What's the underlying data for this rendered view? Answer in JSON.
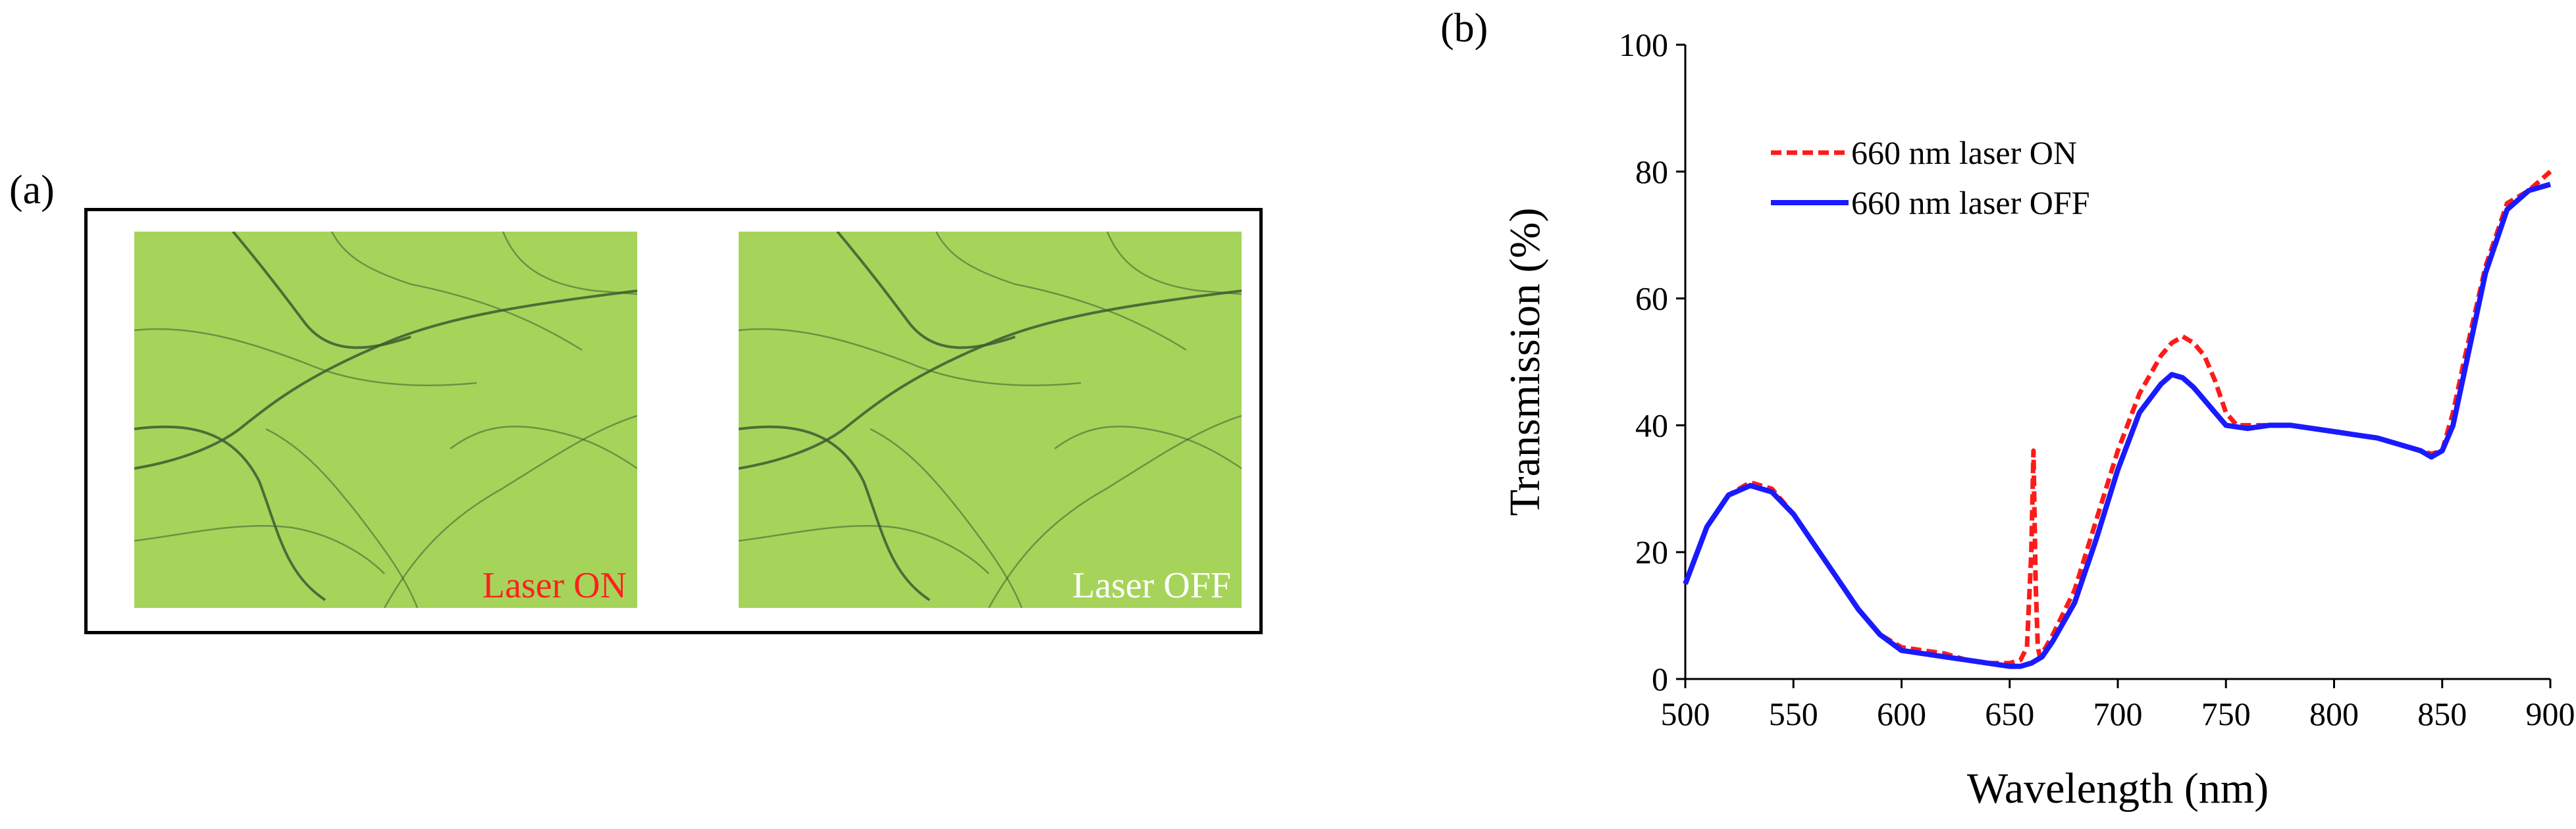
{
  "panel_a": {
    "label": "(a)",
    "images": [
      {
        "caption": "Laser ON",
        "caption_color": "#ff2020"
      },
      {
        "caption": "Laser OFF",
        "caption_color": "#ffffff"
      }
    ],
    "image_colors": {
      "base": "#a6d45a",
      "vein": "#3c5a32"
    }
  },
  "panel_b": {
    "label": "(b)"
  },
  "chart_data": {
    "type": "line",
    "xlabel": "Wavelength (nm)",
    "ylabel": "Transmission (%)",
    "xlim": [
      500,
      900
    ],
    "ylim": [
      0,
      100
    ],
    "xticks": [
      500,
      550,
      600,
      650,
      700,
      750,
      800,
      850,
      900
    ],
    "yticks": [
      0,
      20,
      40,
      60,
      80,
      100
    ],
    "grid": false,
    "legend_position": "upper-left",
    "series": [
      {
        "name": "660 nm laser ON",
        "color": "#ff1a1a",
        "style": "dashed",
        "x": [
          500,
          510,
          520,
          530,
          540,
          550,
          560,
          570,
          580,
          590,
          600,
          610,
          620,
          630,
          640,
          650,
          655,
          658,
          660,
          661,
          662,
          663,
          664,
          665,
          670,
          680,
          690,
          700,
          710,
          720,
          725,
          730,
          735,
          740,
          745,
          750,
          755,
          760,
          770,
          780,
          790,
          800,
          810,
          820,
          830,
          840,
          845,
          850,
          855,
          860,
          870,
          880,
          890,
          900
        ],
        "y": [
          15,
          24,
          29,
          31,
          30,
          26,
          21,
          16,
          11,
          7,
          5,
          4.5,
          4,
          3,
          2.5,
          2.5,
          3,
          5,
          20,
          36,
          15,
          5,
          3.5,
          4,
          7,
          14,
          25,
          36,
          45,
          51,
          53,
          54,
          53,
          51,
          47,
          42,
          40,
          40,
          40,
          40,
          39.5,
          39,
          38.5,
          38,
          37,
          36,
          35.5,
          36,
          42,
          50,
          65,
          75,
          77,
          80
        ]
      },
      {
        "name": "660 nm laser OFF",
        "color": "#1a1aff",
        "style": "solid",
        "x": [
          500,
          510,
          520,
          530,
          540,
          550,
          560,
          570,
          580,
          590,
          600,
          610,
          620,
          630,
          640,
          650,
          655,
          660,
          665,
          670,
          680,
          690,
          700,
          710,
          720,
          725,
          730,
          735,
          740,
          745,
          750,
          760,
          770,
          780,
          790,
          800,
          810,
          820,
          830,
          840,
          845,
          850,
          855,
          860,
          870,
          880,
          890,
          900
        ],
        "y": [
          15,
          24,
          29,
          30.5,
          29.5,
          26,
          21,
          16,
          11,
          7,
          4.5,
          4,
          3.5,
          3,
          2.5,
          2,
          2,
          2.5,
          3.5,
          6,
          12,
          22,
          33,
          42,
          46.5,
          48,
          47.5,
          46,
          44,
          42,
          40,
          39.5,
          40,
          40,
          39.5,
          39,
          38.5,
          38,
          37,
          36,
          35,
          36,
          40,
          48,
          64,
          74,
          77,
          78
        ]
      }
    ]
  }
}
